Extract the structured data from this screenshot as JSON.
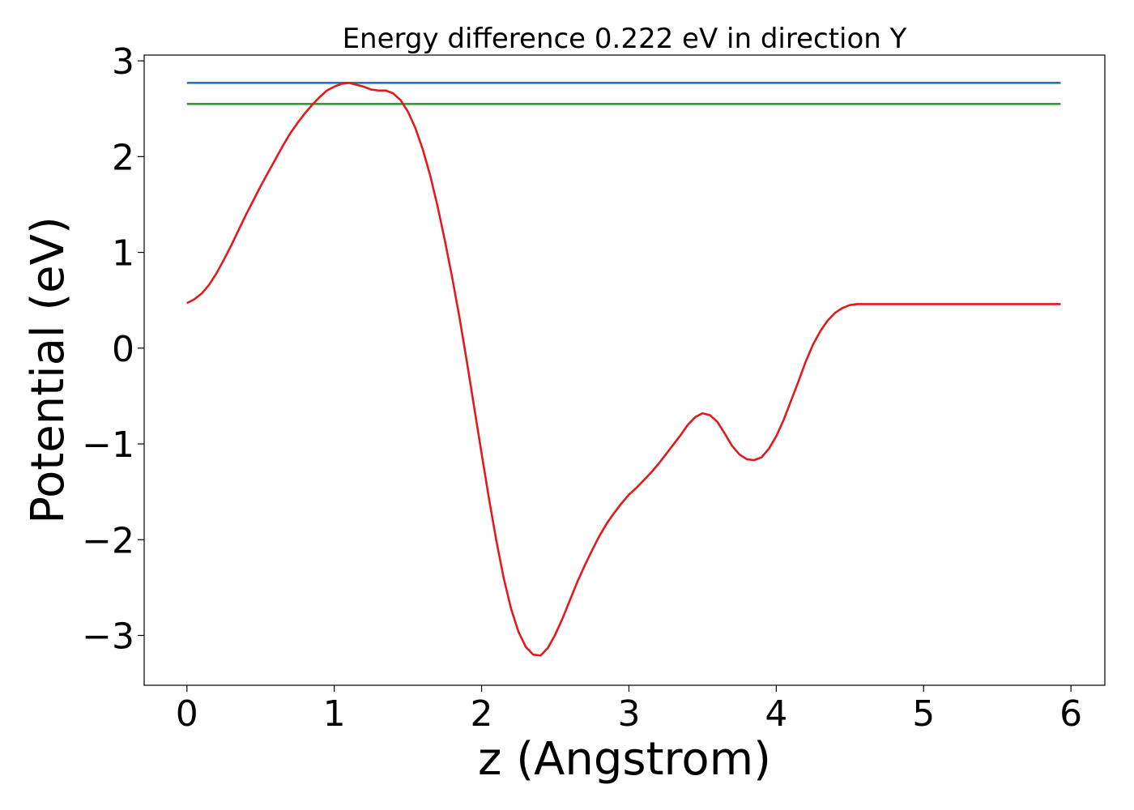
{
  "chart_data": {
    "type": "line",
    "title": "Energy difference 0.222 eV in direction Y",
    "xlabel": "z (Angstrom)",
    "ylabel": "Potential (eV)",
    "xlim": [
      -0.29,
      6.23
    ],
    "ylim": [
      -3.52,
      3.06
    ],
    "xticks": [
      0,
      1,
      2,
      3,
      4,
      5,
      6
    ],
    "yticks": [
      -3,
      -2,
      -1,
      0,
      1,
      2,
      3
    ],
    "xtick_labels": [
      "0",
      "1",
      "2",
      "3",
      "4",
      "5",
      "6"
    ],
    "ytick_labels": [
      "−3",
      "−2",
      "−1",
      "0",
      "1",
      "2",
      "3"
    ],
    "grid": false,
    "series": [
      {
        "color": "#1f77b4",
        "x": [
          0,
          5.93
        ],
        "y": [
          2.77,
          2.77
        ]
      },
      {
        "color": "#2ca02c",
        "x": [
          0,
          5.93
        ],
        "y": [
          2.55,
          2.55
        ]
      },
      {
        "color": "#e31a1c",
        "x": [
          0,
          0.05,
          0.1,
          0.15,
          0.2,
          0.25,
          0.3,
          0.35,
          0.4,
          0.45,
          0.5,
          0.55,
          0.6,
          0.65,
          0.7,
          0.75,
          0.8,
          0.85,
          0.9,
          0.95,
          1.0,
          1.05,
          1.1,
          1.15,
          1.2,
          1.25,
          1.3,
          1.35,
          1.4,
          1.45,
          1.5,
          1.55,
          1.6,
          1.65,
          1.7,
          1.75,
          1.8,
          1.85,
          1.9,
          1.95,
          2.0,
          2.05,
          2.1,
          2.15,
          2.2,
          2.25,
          2.3,
          2.35,
          2.4,
          2.45,
          2.5,
          2.55,
          2.6,
          2.65,
          2.7,
          2.75,
          2.8,
          2.85,
          2.9,
          2.95,
          3.0,
          3.05,
          3.1,
          3.15,
          3.2,
          3.25,
          3.3,
          3.35,
          3.4,
          3.45,
          3.5,
          3.55,
          3.6,
          3.65,
          3.7,
          3.75,
          3.8,
          3.85,
          3.9,
          3.95,
          4.0,
          4.05,
          4.1,
          4.15,
          4.2,
          4.25,
          4.3,
          4.35,
          4.4,
          4.45,
          4.5,
          4.55,
          4.6,
          4.65,
          4.7,
          4.75,
          4.8,
          4.85,
          4.9,
          4.95,
          5.0,
          5.05,
          5.1,
          5.15,
          5.2,
          5.25,
          5.3,
          5.35,
          5.4,
          5.45,
          5.5,
          5.55,
          5.6,
          5.65,
          5.7,
          5.75,
          5.8,
          5.85,
          5.93
        ],
        "y": [
          0.47,
          0.51,
          0.57,
          0.66,
          0.78,
          0.92,
          1.07,
          1.23,
          1.39,
          1.54,
          1.69,
          1.83,
          1.97,
          2.11,
          2.24,
          2.35,
          2.45,
          2.54,
          2.62,
          2.69,
          2.73,
          2.76,
          2.77,
          2.75,
          2.73,
          2.7,
          2.69,
          2.69,
          2.66,
          2.59,
          2.47,
          2.3,
          2.08,
          1.81,
          1.49,
          1.13,
          0.74,
          0.32,
          -0.14,
          -0.62,
          -1.1,
          -1.57,
          -2.01,
          -2.4,
          -2.72,
          -2.96,
          -3.12,
          -3.2,
          -3.21,
          -3.13,
          -2.99,
          -2.82,
          -2.63,
          -2.44,
          -2.27,
          -2.11,
          -1.96,
          -1.83,
          -1.72,
          -1.62,
          -1.53,
          -1.46,
          -1.38,
          -1.3,
          -1.21,
          -1.11,
          -1.01,
          -0.91,
          -0.8,
          -0.72,
          -0.68,
          -0.7,
          -0.77,
          -0.89,
          -1.02,
          -1.11,
          -1.16,
          -1.17,
          -1.14,
          -1.05,
          -0.92,
          -0.75,
          -0.55,
          -0.35,
          -0.14,
          0.04,
          0.18,
          0.29,
          0.37,
          0.42,
          0.45,
          0.46,
          0.46,
          0.46,
          0.46,
          0.46,
          0.46,
          0.46,
          0.46,
          0.46,
          0.46,
          0.46,
          0.46,
          0.46,
          0.46,
          0.46,
          0.46,
          0.46,
          0.46,
          0.46,
          0.46,
          0.46,
          0.46,
          0.46,
          0.46,
          0.46,
          0.46,
          0.46,
          0.46
        ]
      }
    ]
  }
}
